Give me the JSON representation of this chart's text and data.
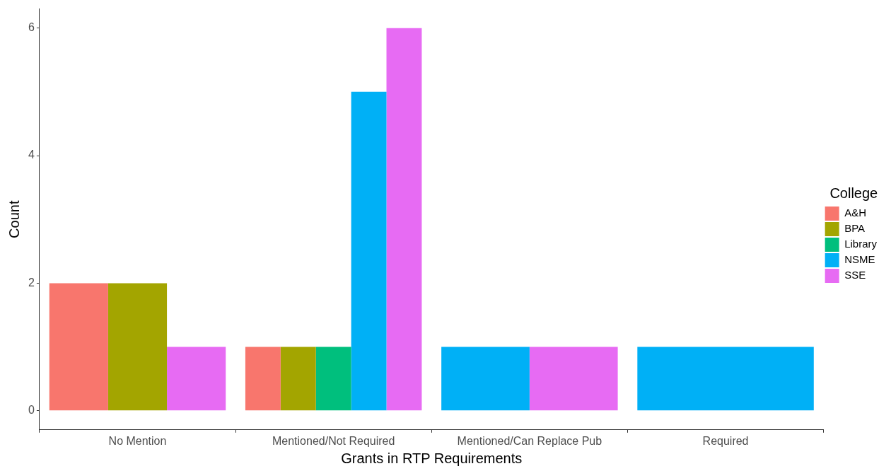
{
  "chart_data": {
    "type": "bar",
    "xlabel": "Grants in RTP Requirements",
    "ylabel": "Count",
    "legend_title": "College",
    "categories": [
      "No Mention",
      "Mentioned/Not Required",
      "Mentioned/Can Replace Pub",
      "Required"
    ],
    "series": [
      {
        "name": "A&H",
        "color": "#f8766d",
        "values": [
          2,
          1,
          null,
          null
        ]
      },
      {
        "name": "BPA",
        "color": "#a3a500",
        "values": [
          2,
          1,
          null,
          null
        ]
      },
      {
        "name": "Library",
        "color": "#00bf7d",
        "values": [
          null,
          1,
          null,
          null
        ]
      },
      {
        "name": "NSME",
        "color": "#00b0f6",
        "values": [
          null,
          5,
          1,
          1
        ]
      },
      {
        "name": "SSE",
        "color": "#e76bf3",
        "values": [
          1,
          6,
          1,
          null
        ]
      }
    ],
    "ylim": [
      -0.3,
      6.3
    ],
    "yticks": [
      0,
      2,
      4,
      6
    ],
    "legend": "right"
  }
}
